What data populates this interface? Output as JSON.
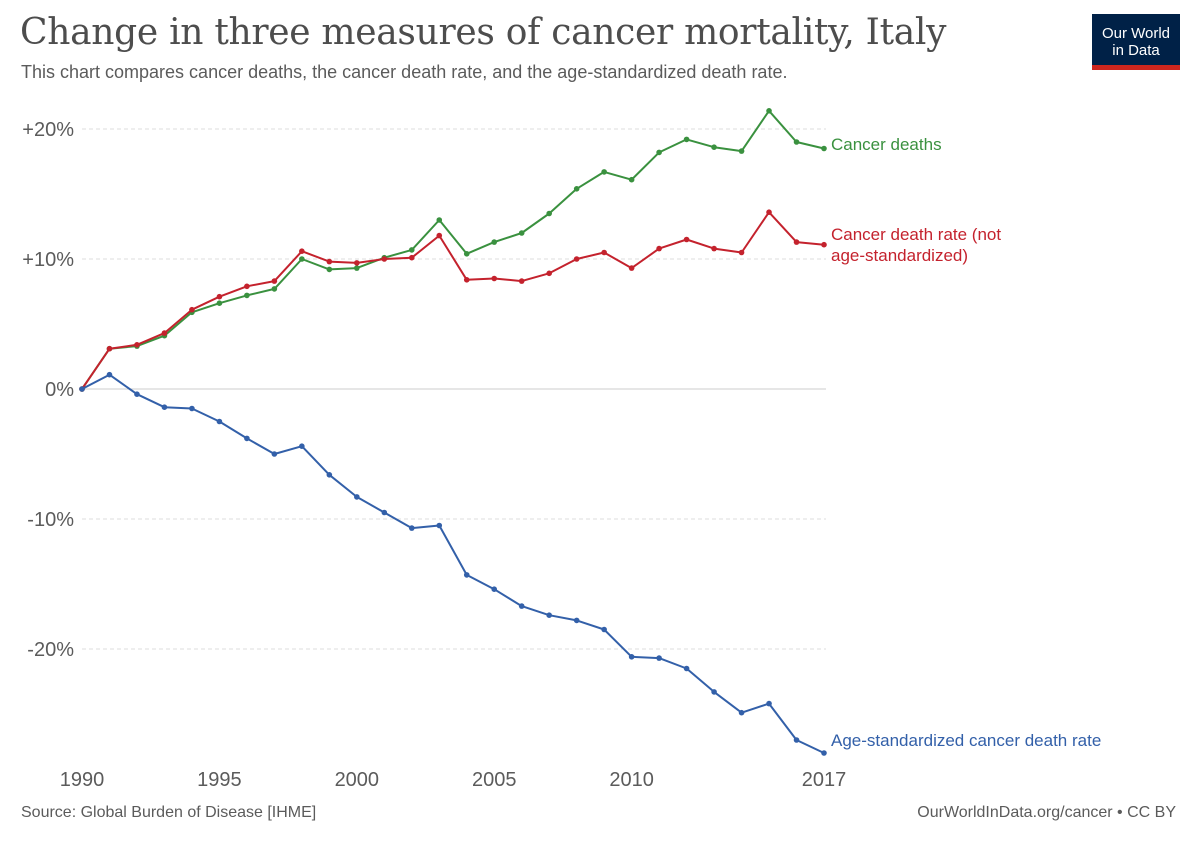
{
  "header": {
    "title": "Change in three measures of cancer mortality, Italy",
    "subtitle": "This chart compares cancer deaths, the cancer death rate, and the age-standardized death rate."
  },
  "logo": {
    "line1": "Our World",
    "line2": "in Data",
    "bg_color": "#002147",
    "accent_color": "#ce261e"
  },
  "footer": {
    "source": "Source: Global Burden of Disease [IHME]",
    "credit": "OurWorldInData.org/cancer • CC BY"
  },
  "chart_data": {
    "type": "line",
    "title": "Change in three measures of cancer mortality, Italy",
    "subtitle": "This chart compares cancer deaths, the cancer death rate, and the age-standardized death rate.",
    "xlabel": "",
    "ylabel": "",
    "x": [
      1990,
      1991,
      1992,
      1993,
      1994,
      1995,
      1996,
      1997,
      1998,
      1999,
      2000,
      2001,
      2002,
      2003,
      2004,
      2005,
      2006,
      2007,
      2008,
      2009,
      2010,
      2011,
      2012,
      2013,
      2014,
      2015,
      2016,
      2017
    ],
    "xlim": [
      1990,
      2017
    ],
    "ylim": [
      -28,
      21
    ],
    "x_ticks": [
      {
        "value": 1990,
        "label": "1990"
      },
      {
        "value": 1995,
        "label": "1995"
      },
      {
        "value": 2000,
        "label": "2000"
      },
      {
        "value": 2005,
        "label": "2005"
      },
      {
        "value": 2010,
        "label": "2010"
      },
      {
        "value": 2017,
        "label": "2017"
      }
    ],
    "y_ticks": [
      {
        "value": 20,
        "label": "+20%"
      },
      {
        "value": 10,
        "label": "+10%"
      },
      {
        "value": 0,
        "label": "0%"
      },
      {
        "value": -10,
        "label": "-10%"
      },
      {
        "value": -20,
        "label": "-20%"
      }
    ],
    "grid": "horizontal dashed",
    "legend": "inline labels at line ends",
    "series": [
      {
        "name": "Cancer deaths",
        "label_lines": [
          "Cancer deaths"
        ],
        "color": "#3a913f",
        "values": [
          0,
          3.1,
          3.3,
          4.1,
          5.9,
          6.6,
          7.2,
          7.7,
          10.0,
          9.2,
          9.3,
          10.1,
          10.7,
          13.0,
          10.4,
          11.3,
          12.0,
          13.5,
          15.4,
          16.7,
          16.1,
          18.2,
          19.2,
          18.6,
          18.3,
          21.4,
          19.0,
          18.5
        ]
      },
      {
        "name": "Cancer death rate (not age-standardized)",
        "label_lines": [
          "Cancer death rate (not",
          "age-standardized)"
        ],
        "color": "#c4222d",
        "values": [
          0,
          3.1,
          3.4,
          4.3,
          6.1,
          7.1,
          7.9,
          8.3,
          10.6,
          9.8,
          9.7,
          10.0,
          10.1,
          11.8,
          8.4,
          8.5,
          8.3,
          8.9,
          10.0,
          10.5,
          9.3,
          10.8,
          11.5,
          10.8,
          10.5,
          13.6,
          11.3,
          11.1
        ]
      },
      {
        "name": "Age-standardized cancer death rate",
        "label_lines": [
          "Age-standardized cancer death rate"
        ],
        "color": "#3360a9",
        "values": [
          0,
          1.1,
          -0.4,
          -1.4,
          -1.5,
          -2.5,
          -3.8,
          -5.0,
          -4.4,
          -6.6,
          -8.3,
          -9.5,
          -10.7,
          -10.5,
          -14.3,
          -15.4,
          -16.7,
          -17.4,
          -17.8,
          -18.5,
          -20.6,
          -20.7,
          -21.5,
          -23.3,
          -24.9,
          -24.2,
          -27.0,
          -28.0
        ]
      }
    ]
  }
}
